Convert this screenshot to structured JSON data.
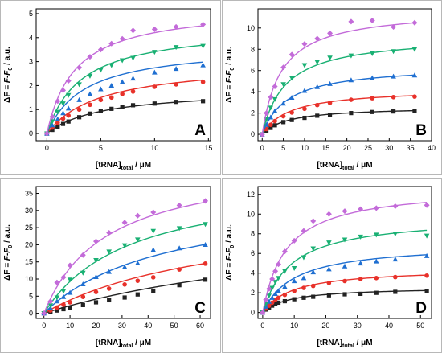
{
  "labels": {
    "x_main": "[tRNA]",
    "x_sub": "total",
    "x_unit": " / μM",
    "y_delta": "ΔF",
    "y_eq": " = F-F",
    "y_sub": "0",
    "y_unit": " / a.u."
  },
  "colors": {
    "black": "#222222",
    "red": "#e8312a",
    "blue": "#1f6fd1",
    "green": "#19b073",
    "magenta": "#c36bd9"
  },
  "chart_data": [
    {
      "type": "scatter",
      "panel": "A",
      "xlim": [
        -1,
        15.2
      ],
      "ylim": [
        -0.3,
        5.2
      ],
      "xticks": [
        0,
        5,
        10,
        15
      ],
      "yticks": [
        0,
        1,
        2,
        3,
        4,
        5
      ],
      "series": [
        {
          "color": "black",
          "marker": "square",
          "x": [
            0,
            0.5,
            1,
            1.5,
            2,
            3,
            4,
            5,
            6,
            7,
            8,
            10,
            12,
            14.5
          ],
          "y": [
            0,
            0.15,
            0.28,
            0.4,
            0.5,
            0.68,
            0.83,
            0.95,
            1.03,
            1.1,
            1.18,
            1.25,
            1.32,
            1.35
          ],
          "fit": {
            "bmax": 1.85,
            "kd": 5.0
          }
        },
        {
          "color": "red",
          "marker": "circle",
          "x": [
            0,
            0.5,
            1,
            1.5,
            2,
            3,
            4,
            5,
            6,
            7,
            8,
            10,
            12,
            14.5
          ],
          "y": [
            0,
            0.25,
            0.45,
            0.62,
            0.75,
            1.0,
            1.2,
            1.4,
            1.5,
            1.65,
            1.75,
            1.95,
            2.05,
            2.15
          ],
          "fit": {
            "bmax": 3.0,
            "kd": 5.0
          }
        },
        {
          "color": "blue",
          "marker": "triangle-up",
          "x": [
            0,
            0.5,
            1,
            1.5,
            2,
            3,
            4,
            5,
            6,
            7,
            8,
            10,
            12,
            14.5
          ],
          "y": [
            0,
            0.35,
            0.6,
            0.85,
            1.05,
            1.4,
            1.65,
            1.85,
            2.0,
            2.15,
            2.3,
            2.55,
            2.7,
            2.85
          ],
          "fit": {
            "bmax": 3.7,
            "kd": 3.5
          }
        },
        {
          "color": "green",
          "marker": "triangle-down",
          "x": [
            0,
            0.5,
            1,
            1.5,
            2,
            3,
            4,
            5,
            6,
            7,
            8,
            10,
            12,
            14.5
          ],
          "y": [
            0,
            0.5,
            0.9,
            1.25,
            1.6,
            2.05,
            2.4,
            2.65,
            2.85,
            3.05,
            3.15,
            3.4,
            3.6,
            3.65
          ],
          "fit": {
            "bmax": 4.5,
            "kd": 3.2
          }
        },
        {
          "color": "magenta",
          "marker": "diamond",
          "x": [
            0,
            0.5,
            1,
            1.5,
            2,
            3,
            4,
            5,
            6,
            7,
            8,
            10,
            12,
            14.5
          ],
          "y": [
            0,
            0.7,
            1.35,
            1.8,
            2.2,
            2.75,
            3.2,
            3.5,
            3.75,
            3.95,
            4.3,
            4.35,
            4.45,
            4.55
          ],
          "fit": {
            "bmax": 5.3,
            "kd": 2.6
          }
        }
      ]
    },
    {
      "type": "scatter",
      "panel": "B",
      "xlim": [
        -1,
        40
      ],
      "ylim": [
        -0.6,
        11.8
      ],
      "xticks": [
        0,
        5,
        10,
        15,
        20,
        25,
        30,
        35,
        40
      ],
      "yticks": [
        0,
        2,
        4,
        6,
        8,
        10
      ],
      "series": [
        {
          "color": "black",
          "marker": "square",
          "x": [
            0,
            1,
            2,
            3,
            5,
            7,
            10,
            13,
            16,
            21,
            26,
            31,
            36
          ],
          "y": [
            0,
            0.35,
            0.6,
            0.85,
            1.15,
            1.35,
            1.55,
            1.75,
            1.85,
            2.0,
            2.1,
            2.15,
            2.2
          ],
          "fit": {
            "bmax": 2.6,
            "kd": 6.0
          }
        },
        {
          "color": "red",
          "marker": "circle",
          "x": [
            0,
            1,
            2,
            3,
            5,
            7,
            10,
            13,
            16,
            21,
            26,
            31,
            36
          ],
          "y": [
            0,
            0.5,
            0.9,
            1.25,
            1.7,
            2.05,
            2.4,
            2.75,
            2.95,
            3.25,
            3.4,
            3.5,
            3.55
          ],
          "fit": {
            "bmax": 4.3,
            "kd": 6.5
          }
        },
        {
          "color": "blue",
          "marker": "triangle-up",
          "x": [
            0,
            1,
            2,
            3,
            5,
            7,
            10,
            13,
            16,
            21,
            26,
            31,
            36
          ],
          "y": [
            0,
            0.9,
            1.6,
            2.2,
            2.9,
            3.45,
            4.1,
            4.45,
            4.75,
            5.1,
            5.3,
            5.45,
            5.55
          ],
          "fit": {
            "bmax": 6.5,
            "kd": 6.0
          }
        },
        {
          "color": "green",
          "marker": "triangle-down",
          "x": [
            0,
            1,
            2,
            3,
            5,
            7,
            10,
            13,
            16,
            21,
            26,
            31,
            36
          ],
          "y": [
            0,
            1.4,
            2.5,
            3.3,
            4.7,
            5.3,
            6.5,
            6.8,
            7.2,
            7.4,
            7.6,
            7.8,
            8.0
          ],
          "fit": {
            "bmax": 9.3,
            "kd": 5.5
          }
        },
        {
          "color": "magenta",
          "marker": "diamond",
          "x": [
            0,
            1,
            2,
            3,
            5,
            7,
            10,
            13,
            16,
            21,
            26,
            31,
            36
          ],
          "y": [
            0,
            2.0,
            3.5,
            4.5,
            6.3,
            7.5,
            8.5,
            9.0,
            9.5,
            10.6,
            10.7,
            10.1,
            10.5
          ],
          "fit": {
            "bmax": 11.8,
            "kd": 4.5
          }
        }
      ]
    },
    {
      "type": "scatter",
      "panel": "C",
      "xlim": [
        -3,
        64
      ],
      "ylim": [
        -1.5,
        37
      ],
      "xticks": [
        0,
        10,
        20,
        30,
        40,
        50,
        60
      ],
      "yticks": [
        0,
        5,
        10,
        15,
        20,
        25,
        30,
        35
      ],
      "series": [
        {
          "color": "black",
          "marker": "square",
          "x": [
            0,
            2.5,
            5,
            7.5,
            10,
            15,
            20,
            25,
            31,
            36,
            42,
            52,
            62
          ],
          "y": [
            0,
            0.4,
            0.8,
            1.2,
            1.6,
            2.4,
            3.2,
            3.8,
            4.6,
            5.5,
            6.6,
            8.2,
            9.8
          ],
          "fit": {
            "bmax": 30,
            "kd": 125
          }
        },
        {
          "color": "red",
          "marker": "circle",
          "x": [
            0,
            2.5,
            5,
            7.5,
            10,
            15,
            20,
            25,
            31,
            36,
            42,
            52,
            62
          ],
          "y": [
            0,
            0.8,
            1.7,
            2.5,
            3.2,
            4.8,
            6.2,
            7.2,
            8.4,
            9.5,
            10.5,
            12.8,
            14.5
          ],
          "fit": {
            "bmax": 31,
            "kd": 70
          }
        },
        {
          "color": "blue",
          "marker": "triangle-up",
          "x": [
            0,
            2.5,
            5,
            7.5,
            10,
            15,
            20,
            25,
            31,
            36,
            42,
            52,
            62
          ],
          "y": [
            0,
            1.5,
            3.5,
            4.8,
            6.0,
            8.5,
            10.6,
            12.1,
            13.5,
            14.6,
            18.5,
            19.0,
            20.0
          ],
          "fit": {
            "bmax": 35,
            "kd": 46
          }
        },
        {
          "color": "green",
          "marker": "triangle-down",
          "x": [
            0,
            2.5,
            5,
            7.5,
            10,
            15,
            20,
            25,
            31,
            36,
            42,
            52,
            62
          ],
          "y": [
            0,
            2.3,
            4.6,
            6.5,
            9.8,
            11.8,
            15.5,
            18.0,
            19.8,
            21.5,
            24.0,
            24.8,
            26.0
          ],
          "fit": {
            "bmax": 40,
            "kd": 33
          }
        },
        {
          "color": "magenta",
          "marker": "diamond",
          "x": [
            0,
            2.5,
            5,
            7.5,
            10,
            15,
            20,
            25,
            31,
            36,
            42,
            52,
            62
          ],
          "y": [
            0,
            3.5,
            9.0,
            10.5,
            14.0,
            17.0,
            21.0,
            23.5,
            26.5,
            28.5,
            29.5,
            31.5,
            32.8
          ],
          "fit": {
            "bmax": 45,
            "kd": 24
          }
        }
      ]
    },
    {
      "type": "scatter",
      "panel": "D",
      "xlim": [
        -1.5,
        53.5
      ],
      "ylim": [
        -0.6,
        12.8
      ],
      "xticks": [
        0,
        10,
        20,
        30,
        40,
        50
      ],
      "yticks": [
        0,
        2,
        4,
        6,
        8,
        10,
        12
      ],
      "series": [
        {
          "color": "black",
          "marker": "square",
          "x": [
            0,
            1,
            2,
            3,
            4,
            5,
            7,
            10,
            13,
            16,
            21,
            26,
            31,
            36,
            42,
            52
          ],
          "y": [
            0,
            0.3,
            0.5,
            0.7,
            0.85,
            1.0,
            1.15,
            1.35,
            1.5,
            1.6,
            1.75,
            1.85,
            1.9,
            2.0,
            2.1,
            2.2
          ],
          "fit": {
            "bmax": 2.6,
            "kd": 8.5
          }
        },
        {
          "color": "red",
          "marker": "circle",
          "x": [
            0,
            1,
            2,
            3,
            4,
            5,
            7,
            10,
            13,
            16,
            21,
            26,
            31,
            36,
            42,
            52
          ],
          "y": [
            0,
            0.4,
            0.7,
            1.0,
            1.3,
            1.5,
            1.8,
            2.2,
            2.5,
            2.7,
            3.0,
            3.2,
            3.4,
            3.5,
            3.6,
            3.75
          ],
          "fit": {
            "bmax": 4.5,
            "kd": 9.5
          }
        },
        {
          "color": "blue",
          "marker": "triangle-up",
          "x": [
            0,
            1,
            2,
            3,
            4,
            5,
            7,
            10,
            13,
            16,
            21,
            26,
            31,
            36,
            42,
            52
          ],
          "y": [
            0,
            0.6,
            1.1,
            1.5,
            1.9,
            2.2,
            2.6,
            3.2,
            3.5,
            4.1,
            4.4,
            4.7,
            5.0,
            5.2,
            5.4,
            5.75
          ],
          "fit": {
            "bmax": 7.0,
            "kd": 10
          }
        },
        {
          "color": "green",
          "marker": "triangle-down",
          "x": [
            0,
            1,
            2,
            3,
            4,
            5,
            7,
            10,
            13,
            16,
            21,
            26,
            31,
            36,
            42,
            52
          ],
          "y": [
            0,
            0.9,
            1.7,
            2.5,
            3.1,
            3.5,
            4.2,
            4.5,
            5.6,
            6.5,
            7.1,
            7.4,
            7.7,
            7.9,
            8.0,
            7.8
          ],
          "fit": {
            "bmax": 9.8,
            "kd": 9
          }
        },
        {
          "color": "magenta",
          "marker": "diamond",
          "x": [
            0,
            1,
            2,
            3,
            4,
            5,
            7,
            10,
            13,
            16,
            21,
            26,
            31,
            36,
            42,
            52
          ],
          "y": [
            0,
            1.3,
            2.4,
            3.4,
            4.2,
            4.9,
            6.2,
            7.3,
            8.3,
            9.3,
            10.0,
            10.3,
            10.5,
            10.6,
            10.8,
            10.9
          ],
          "fit": {
            "bmax": 12.8,
            "kd": 7.5
          }
        }
      ]
    }
  ]
}
